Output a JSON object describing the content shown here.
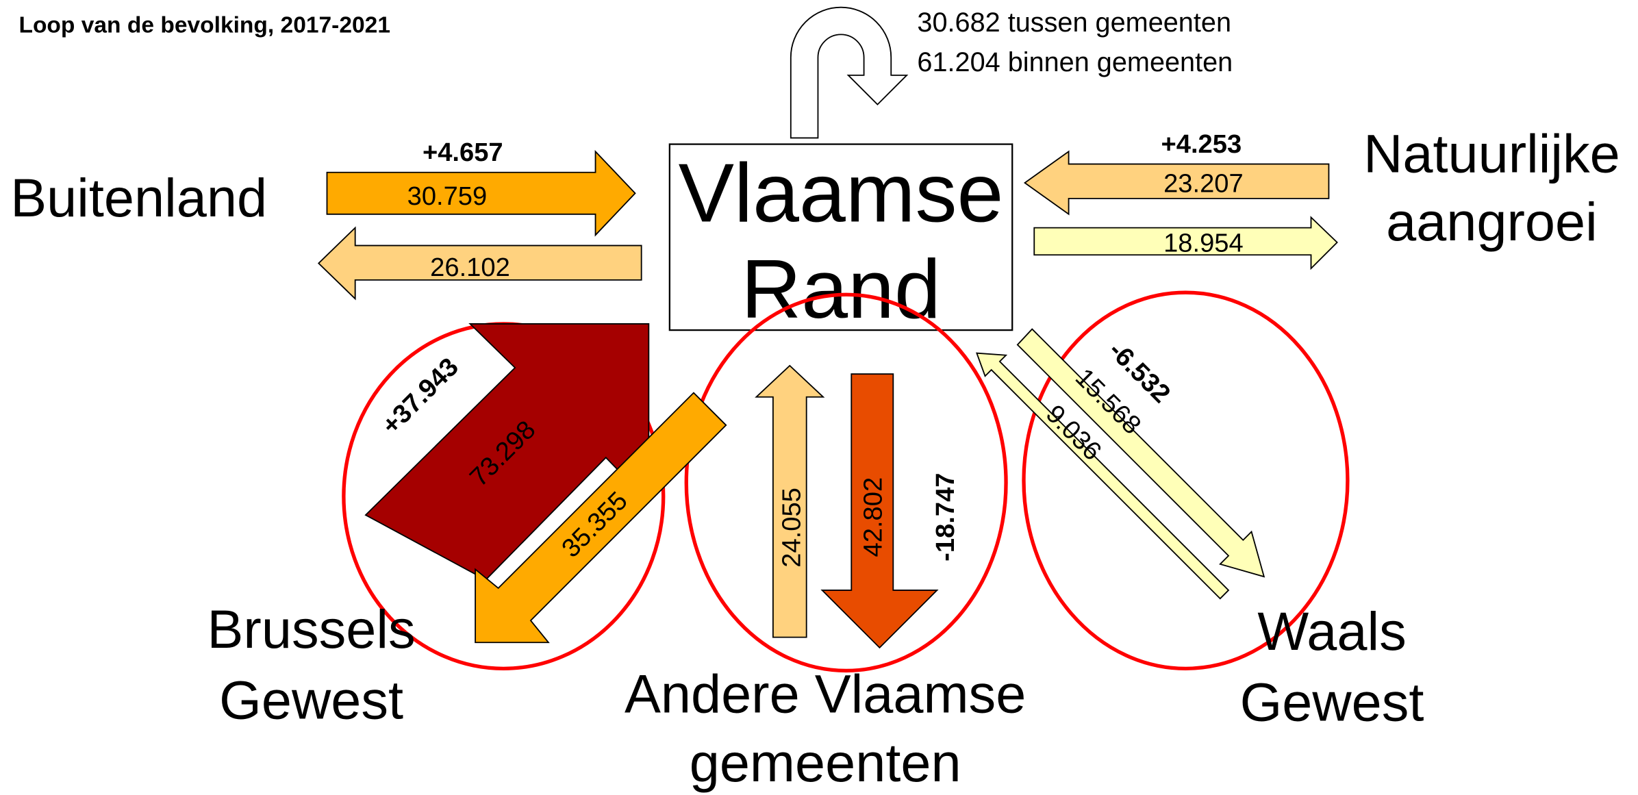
{
  "title": "Loop van de bevolking, 2017-2021",
  "center": {
    "label_lines": [
      "Vlaamse",
      "Rand"
    ]
  },
  "internal": [
    "30.682 tussen gemeenten",
    "61.204 binnen gemeenten"
  ],
  "nodes": [
    {
      "label_lines": [
        "Buitenland"
      ],
      "inflow": "30.759",
      "outflow": "26.102",
      "net": "+4.657"
    },
    {
      "label_lines": [
        "Natuurlijke",
        "aangroei"
      ],
      "inflow": "23.207",
      "outflow": "18.954",
      "net": "+4.253"
    },
    {
      "label_lines": [
        "Brussels",
        "Gewest"
      ],
      "inflow": "73.298",
      "outflow": "35.355",
      "net": "+37.943"
    },
    {
      "label_lines": [
        "Andere Vlaamse",
        "gemeenten"
      ],
      "inflow": "24.055",
      "outflow": "42.802",
      "net": "-18.747"
    },
    {
      "label_lines": [
        "Waals",
        "Gewest"
      ],
      "inflow": "9.036",
      "outflow": "15.568",
      "net": "-6.532"
    }
  ]
}
